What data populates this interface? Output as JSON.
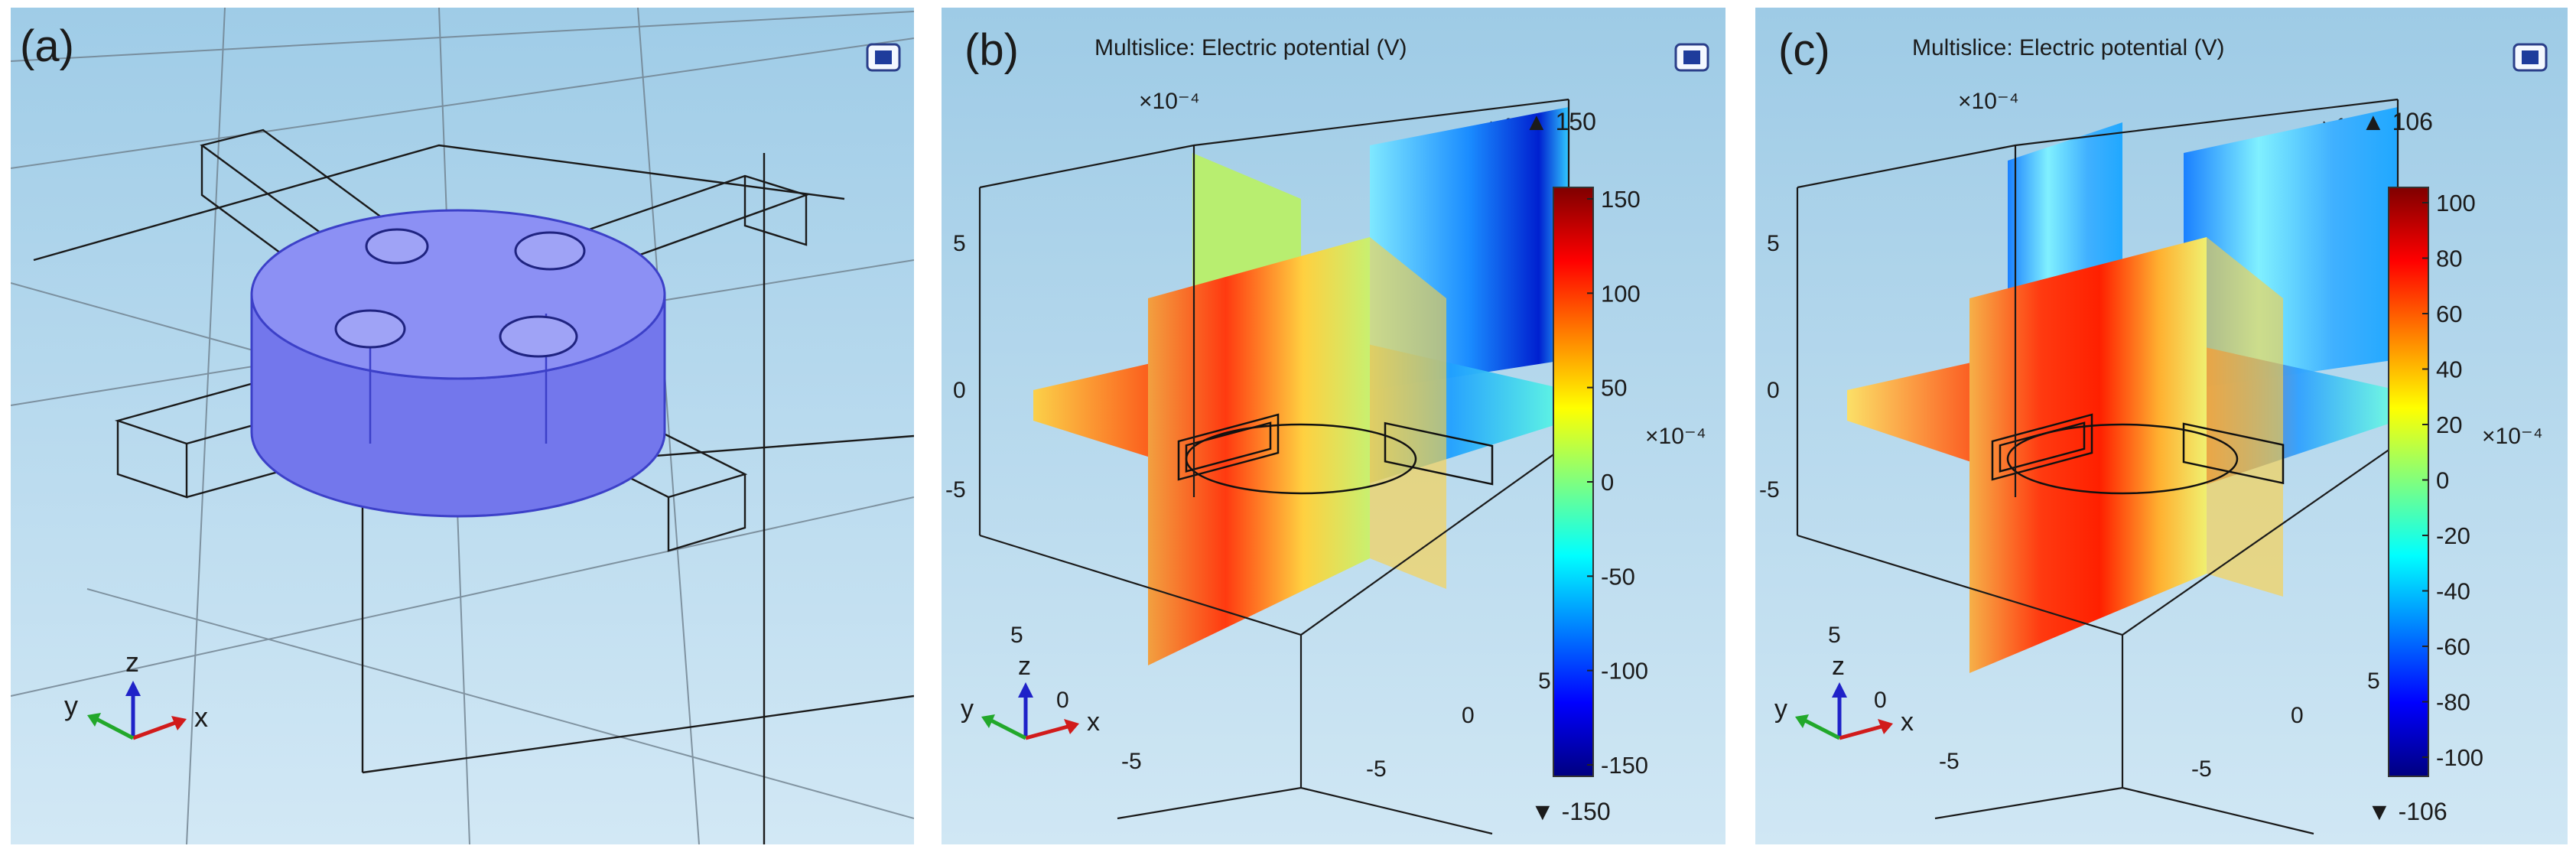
{
  "panel_a": {
    "label": "(a)",
    "axes": {
      "x": "x",
      "y": "y",
      "z": "z"
    }
  },
  "panel_b": {
    "label": "(b)",
    "title": "Multislice: Electric potential (V)",
    "scale_top_left": "×10⁻⁴",
    "scale_top_right": "×10⁻⁴",
    "scale_right": "×10⁻⁴",
    "max_marker": "▲ 150",
    "min_marker": "▼ -150",
    "colorbar_ticks": [
      "150",
      "100",
      "50",
      "0",
      "-50",
      "-100",
      "-150"
    ],
    "z_ticks": [
      "5",
      "0",
      "-5"
    ],
    "y_ticks": [
      "5",
      "0",
      "-5"
    ],
    "x_ticks": [
      "5",
      "0",
      "-5"
    ],
    "axes": {
      "x": "x",
      "y": "y",
      "z": "z"
    }
  },
  "panel_c": {
    "label": "(c)",
    "title": "Multislice: Electric potential (V)",
    "scale_top_left": "×10⁻⁴",
    "scale_top_right": "×10⁻⁴",
    "scale_right": "×10⁻⁴",
    "max_marker": "▲ 106",
    "min_marker": "▼ -106",
    "colorbar_ticks": [
      "100",
      "80",
      "60",
      "40",
      "20",
      "0",
      "-20",
      "-40",
      "-60",
      "-80",
      "-100"
    ],
    "z_ticks": [
      "5",
      "0",
      "-5"
    ],
    "y_ticks": [
      "5",
      "0",
      "-5"
    ],
    "x_ticks": [
      "5",
      "0",
      "-5"
    ],
    "axes": {
      "x": "x",
      "y": "y",
      "z": "z"
    }
  },
  "colors": {
    "background_top": "#9ecbe6",
    "background_bottom": "#cfe6f4",
    "disk": "#7a7ef0",
    "jet_high": "#7f0000",
    "jet_low": "#00007f"
  }
}
